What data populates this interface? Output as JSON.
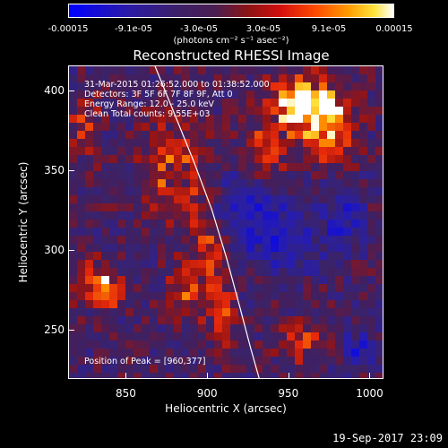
{
  "colorbar": {
    "ticks": [
      "-0.00015",
      "-9.1e-05",
      "-3.0e-05",
      "3.0e-05",
      "9.1e-05",
      "0.00015"
    ],
    "unit_text": "(photons cm⁻² s⁻¹ asec⁻²)"
  },
  "chart_data": {
    "type": "heatmap",
    "title": "Reconstructed RHESSI Image",
    "xlabel": "Heliocentric X (arcsec)",
    "ylabel": "Heliocentric Y (arcsec)",
    "xlim": [
      815,
      1008
    ],
    "ylim": [
      220,
      415
    ],
    "xticks": [
      850,
      900,
      950,
      1000
    ],
    "yticks": [
      250,
      300,
      350,
      400
    ],
    "colorbar_range": [
      -0.00015,
      0.00015
    ],
    "peak": [
      960,
      377
    ],
    "limb_curve": [
      [
        868,
        415
      ],
      [
        880,
        385
      ],
      [
        892,
        355
      ],
      [
        903,
        325
      ],
      [
        912,
        295
      ],
      [
        920,
        265
      ],
      [
        927,
        238
      ],
      [
        932,
        220
      ]
    ],
    "annotations": [
      "31-Mar-2015 01:26:52.000 to 01:38:52.000",
      "Detectors: 3F 5F 6F 7F 8F 9F, Att 0",
      "Energy Range: 12.0 - 25.0 keV",
      "Clean     Total counts: 9.55E+03",
      "Position of Peak = [960,377]"
    ]
  },
  "footer": {
    "timestamp": "19-Sep-2017 23:09"
  },
  "colors": {
    "background": "#000000",
    "foreground": "#ffffff"
  }
}
